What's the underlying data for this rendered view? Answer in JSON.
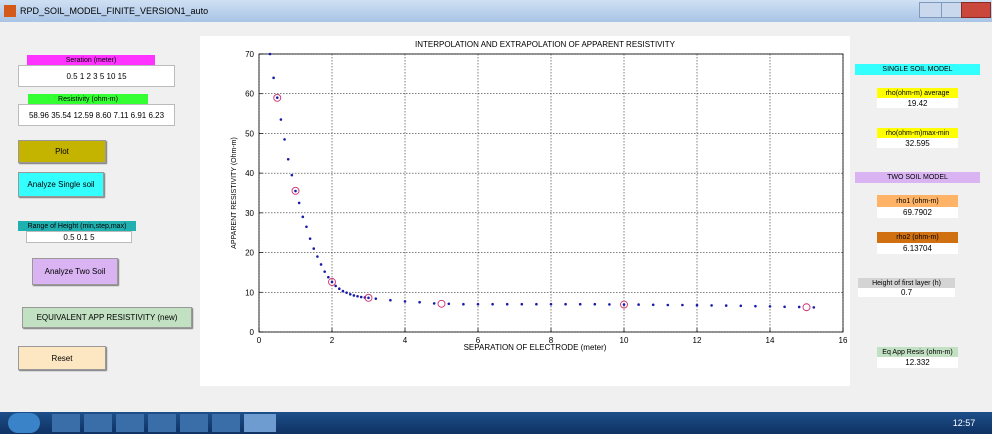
{
  "window": {
    "title": "RPD_SOIL_MODEL_FINITE_VERSION1_auto"
  },
  "left": {
    "separation_label": "Seration (meter)",
    "separation_value": "0.5 1 2 3 5 10 15",
    "resistivity_label": "Resistivity (ohm-m)",
    "resistivity_value": "58.96 35.54 12.59 8.60 7.11 6.91 6.23",
    "plot_button": "Plot",
    "single_button": "Analyze Single soil",
    "height_label": "Range of Height (min,step,max)",
    "height_value": "0.5 0.1 5",
    "two_button": "Analyze Two Soil",
    "equiv_button": "EQUIVALENT APP RESISTIVITY (new)",
    "reset_button": "Reset"
  },
  "right": {
    "single_header": "SINGLE SOIL MODEL",
    "rho_avg_label": "rho(ohm-m) average",
    "rho_avg_value": "19.42",
    "rho_maxmin_label": "rho(ohm-m)max-min",
    "rho_maxmin_value": "32.595",
    "two_header": "TWO SOIL MODEL",
    "rho1_label": "rho1 (ohm-m)",
    "rho1_value": "69.7902",
    "rho2_label": "rho2 (ohm-m)",
    "rho2_value": "6.13704",
    "height_label": "Height of first layer (h)",
    "height_value": "0.7",
    "eq_label": "Eq App Resis (ohm-m)",
    "eq_value": "12.332"
  },
  "chart_data": {
    "type": "scatter",
    "title": "INTERPOLATION AND EXTRAPOLATION OF APPARENT RESISTIVITY",
    "x_label": "SEPARATION OF ELECTRODE (meter)",
    "y_label": "APPARENT RESISTIVITY (Ohm-m)",
    "xlim": [
      0,
      16
    ],
    "ylim": [
      0,
      70
    ],
    "xticks": [
      0,
      2,
      4,
      6,
      8,
      10,
      12,
      14,
      16
    ],
    "yticks": [
      0,
      10,
      20,
      30,
      40,
      50,
      60,
      70
    ],
    "grid": true,
    "series": [
      {
        "color": "#1a1aa8",
        "marker": "dot",
        "x": [
          0.3,
          0.4,
          0.5,
          0.6,
          0.7,
          0.8,
          0.9,
          1.0,
          1.1,
          1.2,
          1.3,
          1.4,
          1.5,
          1.6,
          1.7,
          1.8,
          1.9,
          2.0,
          2.1,
          2.2,
          2.3,
          2.4,
          2.5,
          2.6,
          2.7,
          2.8,
          2.9,
          3.0,
          3.2,
          3.6,
          4.0,
          4.4,
          4.8,
          5.2,
          5.6,
          6.0,
          6.4,
          6.8,
          7.2,
          7.6,
          8.0,
          8.4,
          8.8,
          9.2,
          9.6,
          10.0,
          10.4,
          10.8,
          11.2,
          11.6,
          12.0,
          12.4,
          12.8,
          13.2,
          13.6,
          14.0,
          14.4,
          14.8,
          15.2
        ],
        "values": [
          70,
          64,
          59,
          53.5,
          48.5,
          43.5,
          39.5,
          35.5,
          32.5,
          29,
          26.5,
          23.5,
          21,
          19,
          17,
          15.2,
          13.8,
          12.6,
          11.6,
          10.9,
          10.3,
          9.9,
          9.5,
          9.2,
          9.0,
          8.8,
          8.7,
          8.6,
          8.4,
          8.0,
          7.7,
          7.5,
          7.2,
          7.1,
          7.0,
          7.0,
          7.0,
          7.0,
          7.0,
          7.0,
          7.0,
          7.0,
          7.0,
          7.0,
          6.95,
          6.9,
          6.9,
          6.85,
          6.8,
          6.8,
          6.75,
          6.7,
          6.65,
          6.6,
          6.5,
          6.45,
          6.35,
          6.3,
          6.2
        ]
      },
      {
        "color": "#d03070",
        "marker": "circle",
        "x": [
          0.5,
          1,
          2,
          3,
          5,
          10,
          15
        ],
        "values": [
          58.96,
          35.54,
          12.59,
          8.6,
          7.11,
          6.91,
          6.23
        ]
      }
    ]
  },
  "taskbar": {
    "time": "12:57"
  }
}
